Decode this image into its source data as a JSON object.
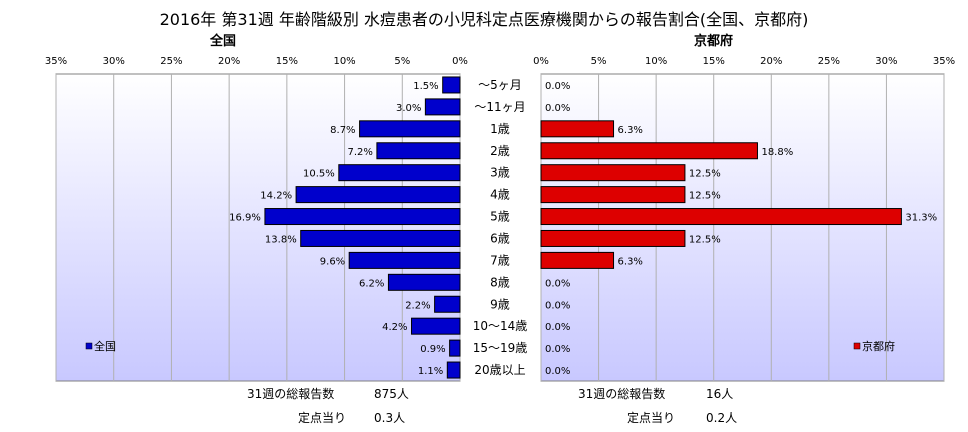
{
  "title": "2016年 第31週 年齢階級別 水痘患者の小児科定点医療機関からの報告割合(全国、京都府)",
  "chart_data": [
    {
      "type": "bar",
      "orientation": "horizontal",
      "subtitle": "全国",
      "categories": [
        "～5ヶ月",
        "～11ヶ月",
        "1歳",
        "2歳",
        "3歳",
        "4歳",
        "5歳",
        "6歳",
        "7歳",
        "8歳",
        "9歳",
        "10～14歳",
        "15～19歳",
        "20歳以上"
      ],
      "values": [
        1.5,
        3.0,
        8.7,
        7.2,
        10.5,
        14.2,
        16.9,
        13.8,
        9.6,
        6.2,
        2.2,
        4.2,
        0.9,
        1.1
      ],
      "value_labels": [
        "1.5%",
        "3.0%",
        "8.7%",
        "7.2%",
        "10.5%",
        "14.2%",
        "16.9%",
        "13.8%",
        "9.6%",
        "6.2%",
        "2.2%",
        "4.2%",
        "0.9%",
        "1.1%"
      ],
      "xlim": [
        0,
        35
      ],
      "x_direction": "reversed",
      "ticks": [
        "35%",
        "30%",
        "25%",
        "20%",
        "15%",
        "10%",
        "5%",
        "0%"
      ],
      "legend": "全国",
      "legend_position": "bottom-left",
      "color": "#0000cc",
      "grid": true
    },
    {
      "type": "bar",
      "orientation": "horizontal",
      "subtitle": "京都府",
      "categories": [
        "～5ヶ月",
        "～11ヶ月",
        "1歳",
        "2歳",
        "3歳",
        "4歳",
        "5歳",
        "6歳",
        "7歳",
        "8歳",
        "9歳",
        "10～14歳",
        "15～19歳",
        "20歳以上"
      ],
      "values": [
        0.0,
        0.0,
        6.3,
        18.8,
        12.5,
        12.5,
        31.3,
        12.5,
        6.3,
        0.0,
        0.0,
        0.0,
        0.0,
        0.0
      ],
      "value_labels": [
        "0.0%",
        "0.0%",
        "6.3%",
        "18.8%",
        "12.5%",
        "12.5%",
        "31.3%",
        "12.5%",
        "6.3%",
        "0.0%",
        "0.0%",
        "0.0%",
        "0.0%",
        "0.0%"
      ],
      "xlim": [
        0,
        35
      ],
      "ticks": [
        "0%",
        "5%",
        "10%",
        "15%",
        "20%",
        "25%",
        "30%",
        "35%"
      ],
      "legend": "京都府",
      "legend_position": "bottom-right",
      "color": "#dd0000",
      "grid": true
    }
  ],
  "summary": {
    "left_total_label": "31週の総報告数",
    "left_total_value": "875人",
    "left_per_label": "定点当り",
    "left_per_value": "0.3人",
    "right_total_label": "31週の総報告数",
    "right_total_value": "16人",
    "right_per_label": "定点当り",
    "right_per_value": "0.2人"
  },
  "colors": {
    "plot_bg_top": "#ffffff",
    "plot_bg_bottom": "#c8c8ff",
    "national_bar": "#0000cc",
    "kyoto_bar": "#dd0000"
  }
}
